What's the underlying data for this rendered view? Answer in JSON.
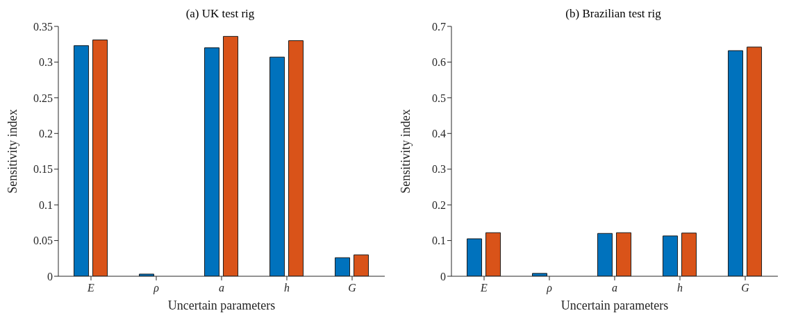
{
  "chart_data": [
    {
      "type": "bar",
      "title": "(a) UK test rig",
      "xlabel": "Uncertain parameters",
      "ylabel": "Sensitivity index",
      "categories": [
        "E",
        "ρ",
        "a",
        "h",
        "G"
      ],
      "series": [
        {
          "color": "#0072bd",
          "values": [
            0.323,
            0.003,
            0.32,
            0.307,
            0.026
          ]
        },
        {
          "color": "#d95319",
          "values": [
            0.331,
            0,
            0.336,
            0.33,
            0.03
          ]
        }
      ],
      "ylim": [
        0,
        0.35
      ],
      "yticks": [
        0,
        0.05,
        0.1,
        0.15,
        0.2,
        0.25,
        0.3,
        0.35
      ],
      "grid": false,
      "legend": false
    },
    {
      "type": "bar",
      "title": "(b) Brazilian test rig",
      "xlabel": "Uncertain parameters",
      "ylabel": "Sensitivity index",
      "categories": [
        "E",
        "ρ",
        "a",
        "h",
        "G"
      ],
      "series": [
        {
          "color": "#0072bd",
          "values": [
            0.105,
            0.008,
            0.12,
            0.113,
            0.632
          ]
        },
        {
          "color": "#d95319",
          "values": [
            0.122,
            0,
            0.122,
            0.121,
            0.642
          ]
        }
      ],
      "ylim": [
        0,
        0.7
      ],
      "yticks": [
        0,
        0.1,
        0.2,
        0.3,
        0.4,
        0.5,
        0.6,
        0.7
      ],
      "grid": false,
      "legend": false
    }
  ]
}
